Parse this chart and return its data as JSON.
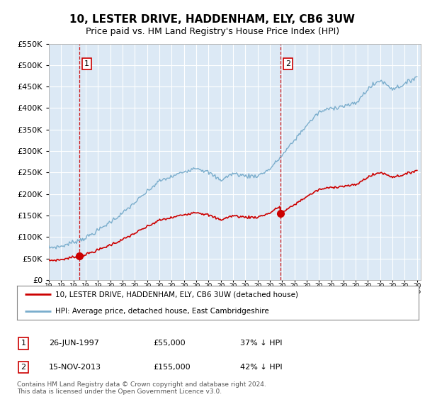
{
  "title": "10, LESTER DRIVE, HADDENHAM, ELY, CB6 3UW",
  "subtitle": "Price paid vs. HM Land Registry's House Price Index (HPI)",
  "legend_line1": "10, LESTER DRIVE, HADDENHAM, ELY, CB6 3UW (detached house)",
  "legend_line2": "HPI: Average price, detached house, East Cambridgeshire",
  "table_rows": [
    {
      "num": "1",
      "date": "26-JUN-1997",
      "price": "£55,000",
      "pct": "37% ↓ HPI"
    },
    {
      "num": "2",
      "date": "15-NOV-2013",
      "price": "£155,000",
      "pct": "42% ↓ HPI"
    }
  ],
  "footnote": "Contains HM Land Registry data © Crown copyright and database right 2024.\nThis data is licensed under the Open Government Licence v3.0.",
  "sale1_year": 1997.49,
  "sale1_price": 55000,
  "sale2_year": 2013.88,
  "sale2_price": 155000,
  "red_color": "#cc0000",
  "blue_color": "#7aadcc",
  "plot_bg": "#dce9f5",
  "grid_color": "#ffffff",
  "ylim_max": 550000,
  "ylim_min": 0,
  "hpi_anchors_x": [
    1995,
    1996,
    1997,
    1998,
    1999,
    2000,
    2001,
    2002,
    2003,
    2004,
    2005,
    2006,
    2007,
    2008,
    2009,
    2010,
    2011,
    2012,
    2013,
    2014,
    2015,
    2016,
    2017,
    2018,
    2019,
    2020,
    2021,
    2022,
    2023,
    2024,
    2025
  ],
  "hpi_anchors_y": [
    75000,
    78000,
    88000,
    98000,
    115000,
    135000,
    155000,
    180000,
    205000,
    230000,
    240000,
    252000,
    262000,
    250000,
    232000,
    248000,
    242000,
    242000,
    258000,
    290000,
    325000,
    360000,
    390000,
    400000,
    405000,
    410000,
    445000,
    465000,
    445000,
    455000,
    475000
  ]
}
